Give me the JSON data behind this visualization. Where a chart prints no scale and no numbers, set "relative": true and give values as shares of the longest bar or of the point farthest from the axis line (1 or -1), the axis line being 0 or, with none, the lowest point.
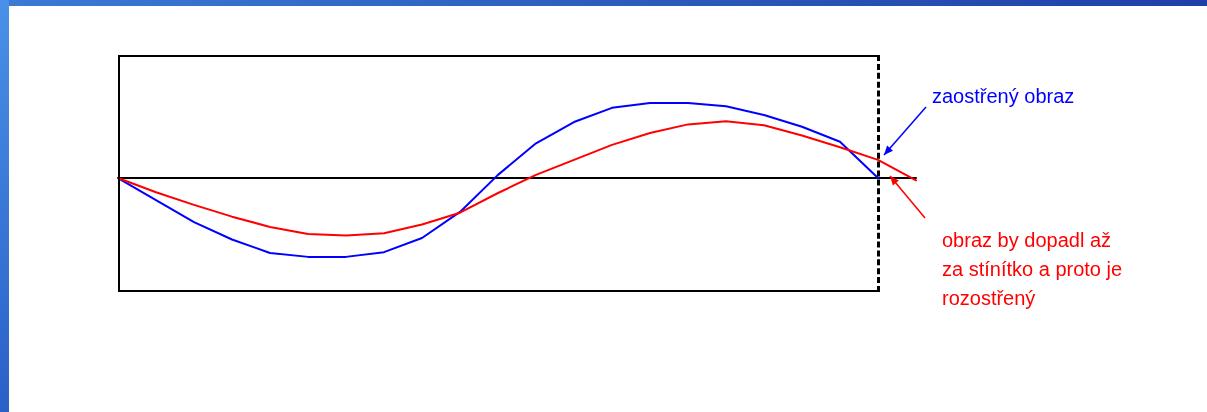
{
  "chart_data": {
    "type": "line",
    "relative": true,
    "grid": false,
    "marker": "none",
    "categories": [
      null,
      null,
      null,
      null,
      null,
      null,
      null,
      null,
      null,
      null,
      null,
      null,
      null,
      null,
      null,
      null,
      null,
      null,
      null,
      null,
      null,
      null
    ],
    "series": [
      {
        "color": "#0000ff",
        "values": [
          0,
          -0.28,
          -0.56,
          -0.78,
          -0.95,
          -1,
          -1,
          -0.94,
          -0.76,
          -0.43,
          0.04,
          0.44,
          0.71,
          0.89,
          0.95,
          0.95,
          0.91,
          0.8,
          0.65,
          0.46,
          0,
          null
        ]
      },
      {
        "color": "#ff0000",
        "values": [
          0,
          -0.18,
          -0.34,
          -0.49,
          -0.62,
          -0.71,
          -0.73,
          -0.7,
          -0.59,
          -0.44,
          -0.19,
          0.04,
          0.23,
          0.42,
          0.57,
          0.68,
          0.72,
          0.67,
          0.54,
          0.39,
          0.23,
          -0.03
        ]
      }
    ],
    "annotations": [
      "zaostřený obraz",
      "obraz by dopadl až\nza stínítko a proto je\nrozostřený"
    ]
  }
}
